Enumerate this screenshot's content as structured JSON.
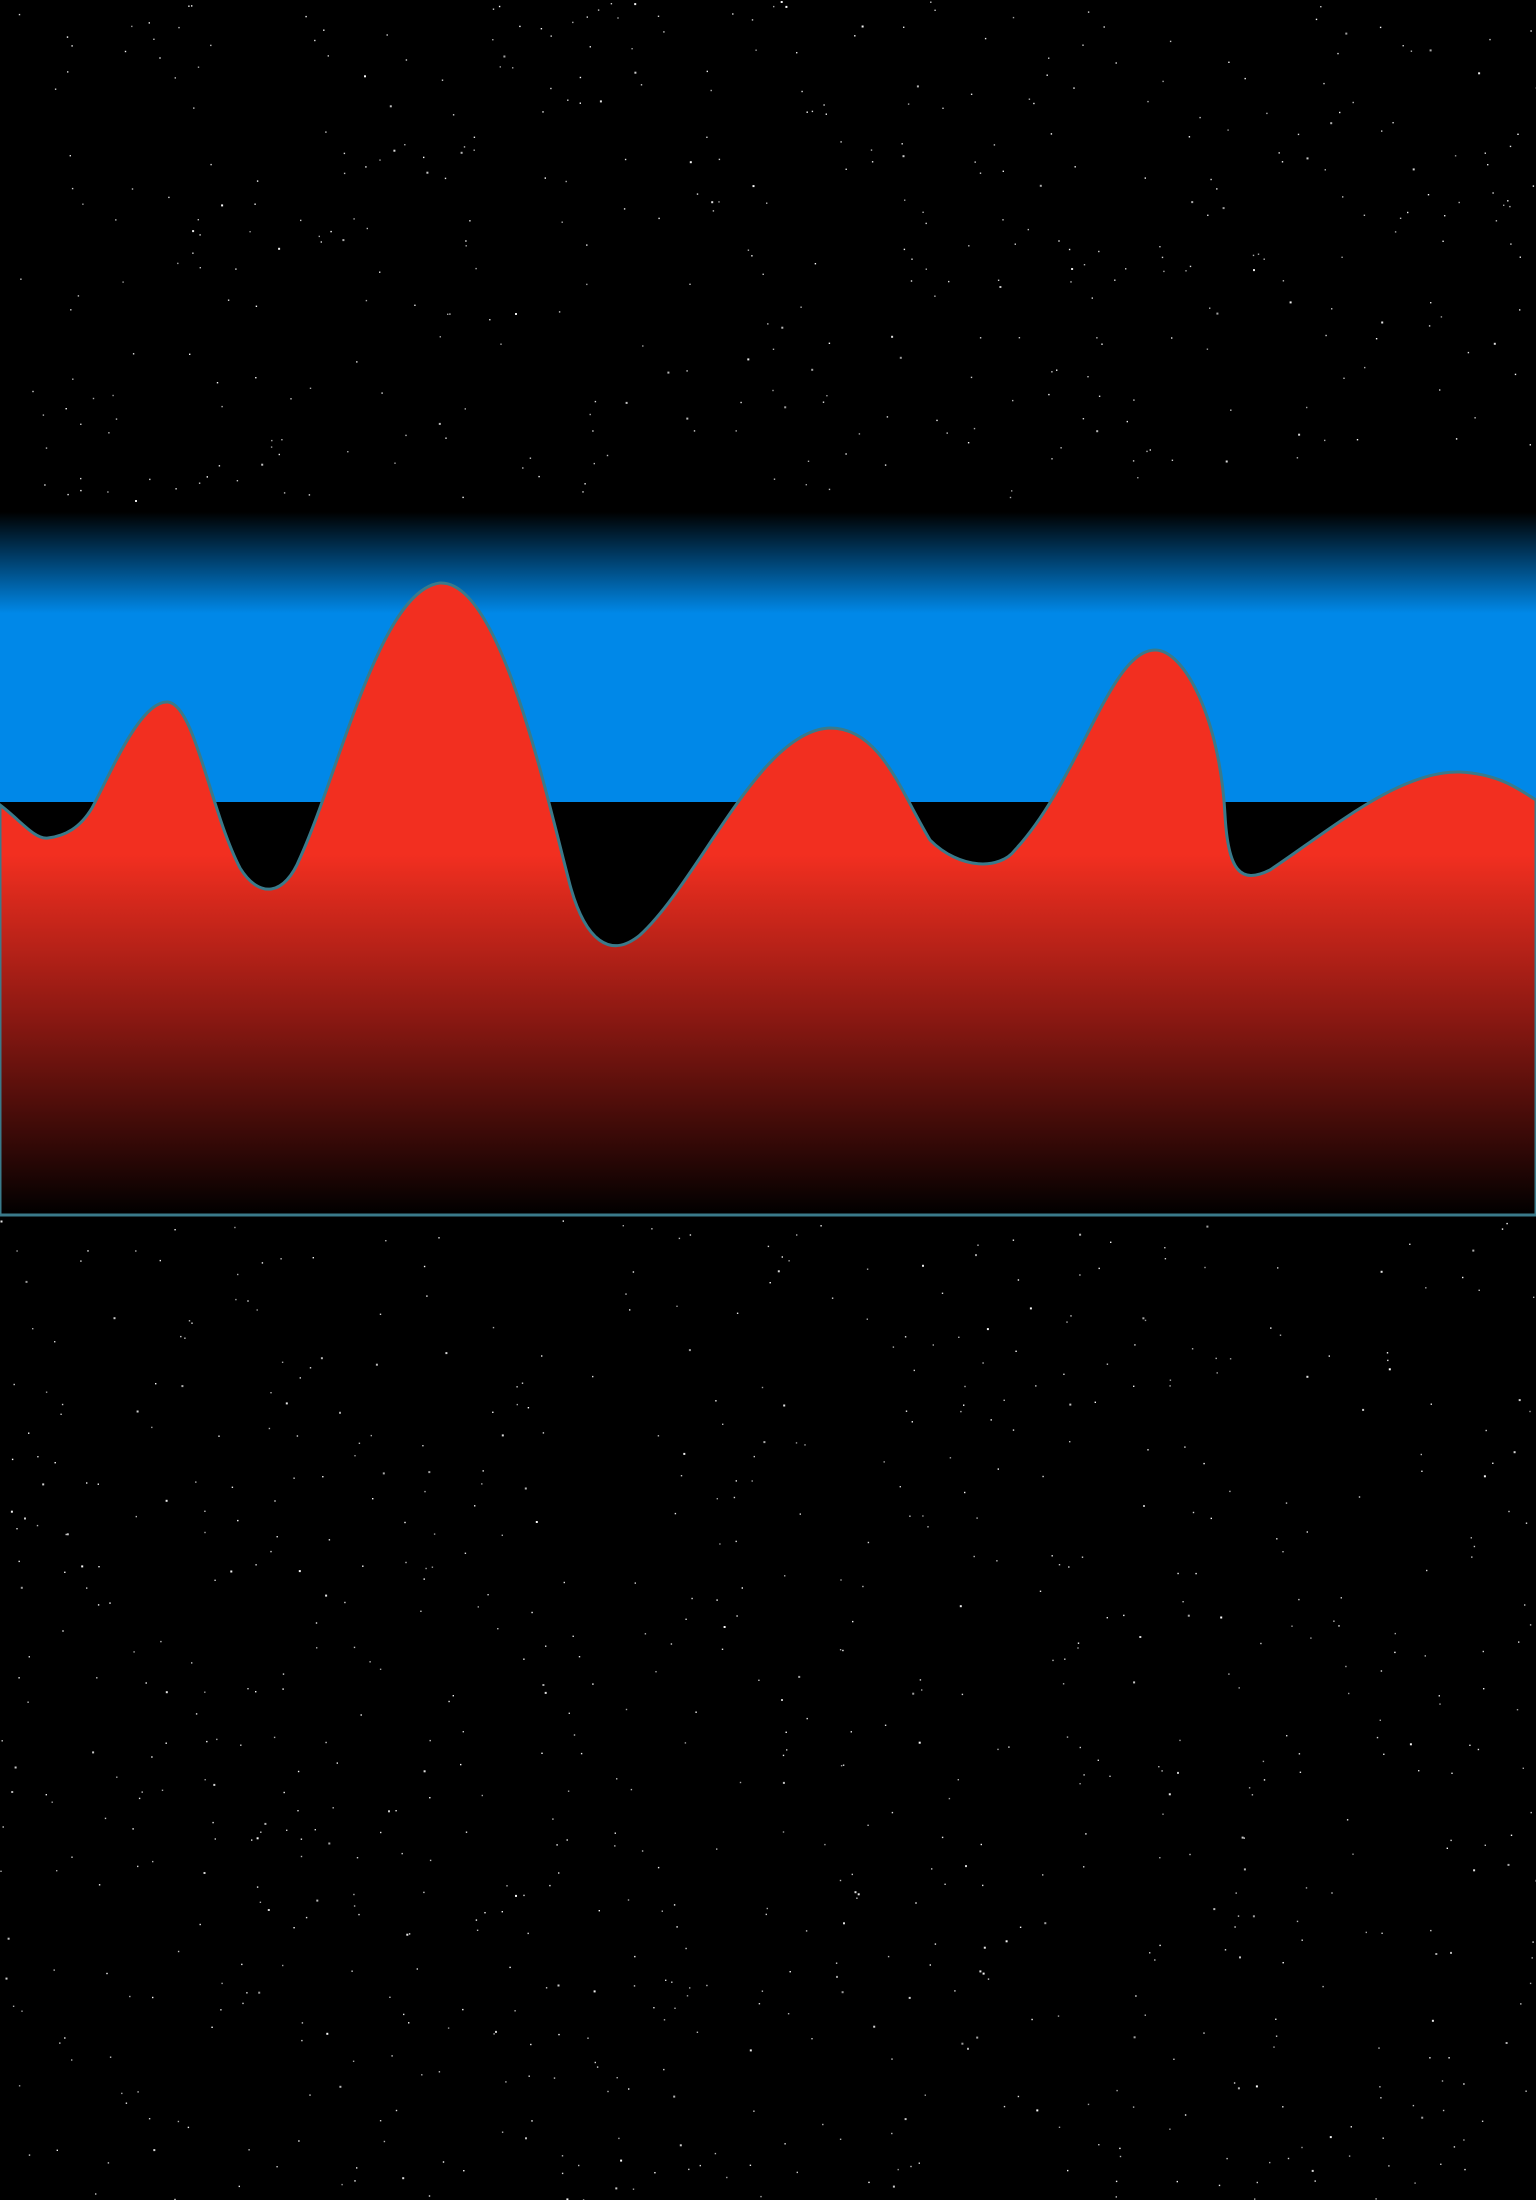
{
  "scene": {
    "background_color": "#000000",
    "star_color": "#ffffff",
    "sky_band_color": "#0088e8",
    "terrain_top_color": "#f22f20",
    "terrain_outline_color": "#3a7a8a",
    "terrain_fade_to": "#000000",
    "has_text": false
  }
}
